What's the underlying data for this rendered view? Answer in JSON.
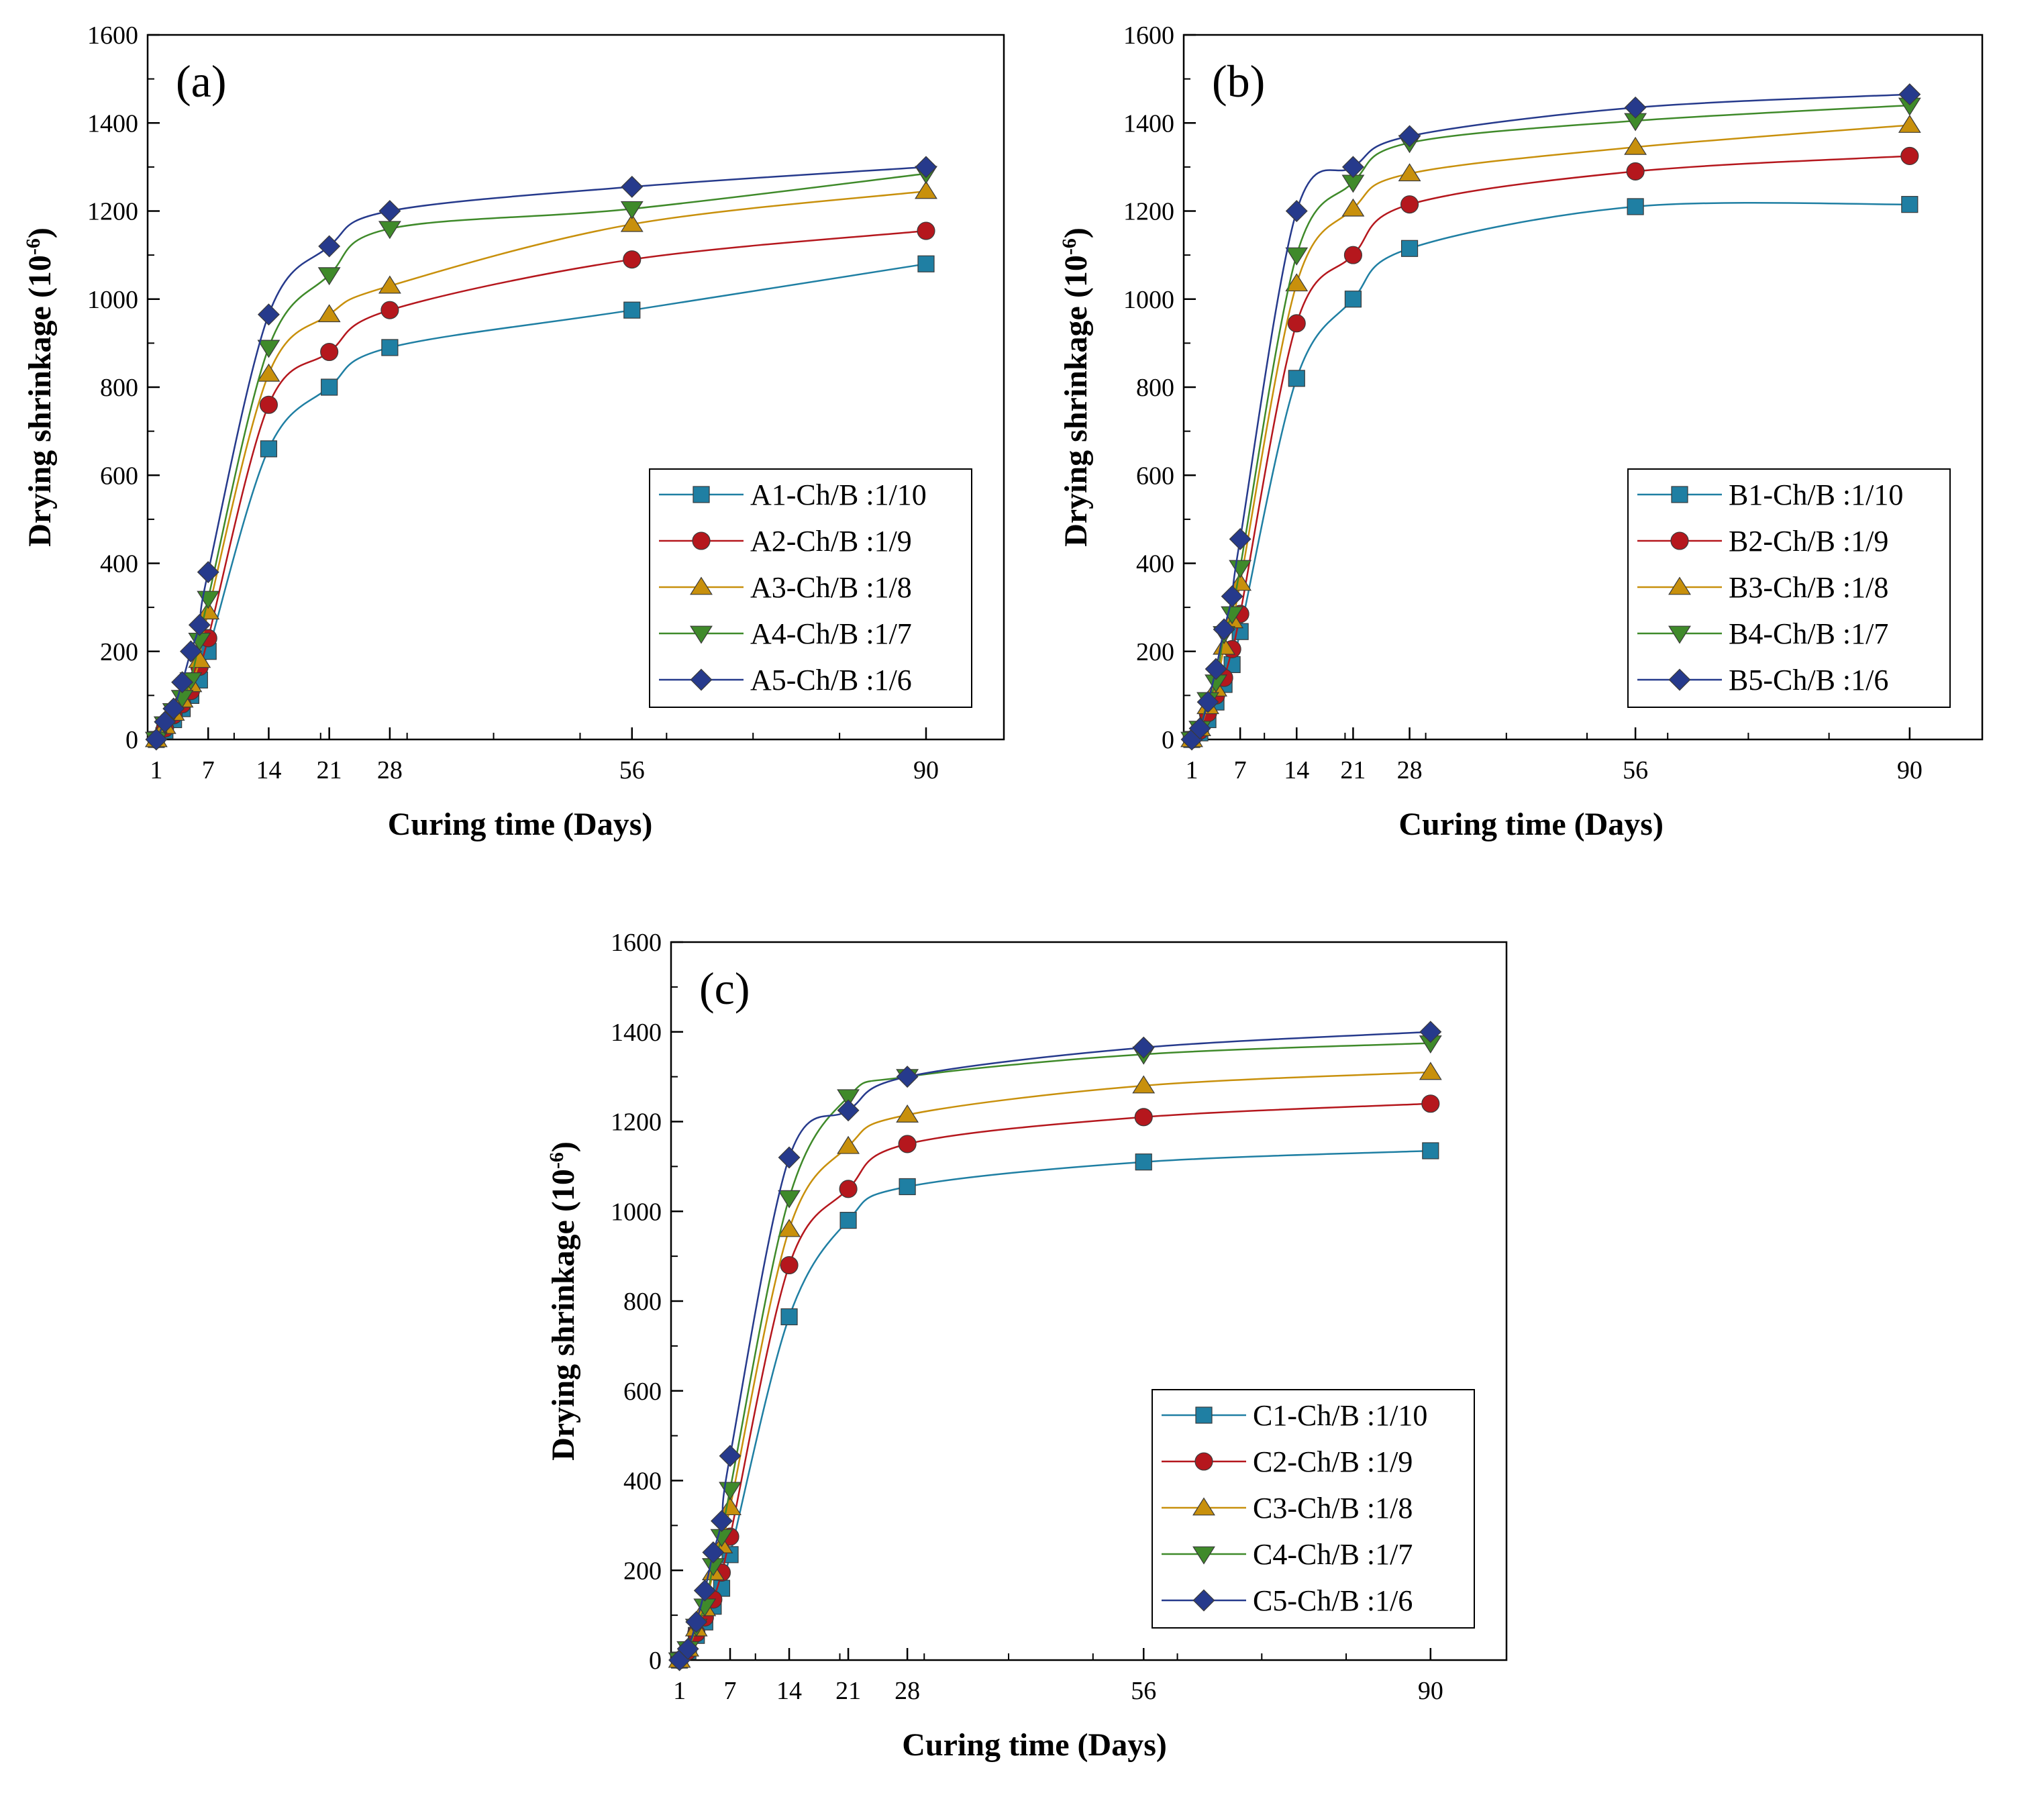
{
  "figure": {
    "panel_labels": [
      "(a)",
      "(b)",
      "(c)"
    ],
    "colors": {
      "s1": "#1f7fa3",
      "s2": "#b5171d",
      "s3": "#c8900c",
      "s4": "#3f8a2a",
      "s5": "#263a8c",
      "axis": "#000000"
    },
    "markers": [
      "square",
      "circle",
      "triangle-up",
      "triangle-down",
      "diamond"
    ]
  },
  "chart_data": [
    {
      "type": "line",
      "panel": "(a)",
      "xlabel": "Curing time (Days)",
      "ylabel": "Drying shrinkage (10",
      "ylabel_sup": "-6",
      "ylabel_close": ")",
      "x_ticks": [
        1,
        7,
        14,
        21,
        28,
        56,
        90
      ],
      "xlim": [
        0,
        99
      ],
      "ylim": [
        0,
        1600
      ],
      "y_ticks": [
        0,
        200,
        400,
        600,
        800,
        1000,
        1200,
        1400,
        1600
      ],
      "legend_position": "lower-right",
      "x": [
        1,
        2,
        3,
        4,
        5,
        6,
        7,
        14,
        21,
        28,
        56,
        90
      ],
      "series": [
        {
          "name": "A1-Ch/B :1/10",
          "values": [
            0,
            20,
            45,
            70,
            100,
            135,
            200,
            660,
            800,
            890,
            975,
            1080
          ]
        },
        {
          "name": "A2-Ch/B :1/9",
          "values": [
            0,
            25,
            55,
            80,
            110,
            165,
            230,
            760,
            880,
            975,
            1090,
            1155
          ]
        },
        {
          "name": "A3-Ch/B :1/8",
          "values": [
            0,
            30,
            60,
            90,
            125,
            180,
            290,
            830,
            965,
            1030,
            1170,
            1245
          ]
        },
        {
          "name": "A4-Ch/B :1/7",
          "values": [
            0,
            35,
            65,
            95,
            135,
            225,
            320,
            890,
            1055,
            1160,
            1205,
            1285
          ]
        },
        {
          "name": "A5-Ch/B :1/6",
          "values": [
            0,
            40,
            70,
            130,
            200,
            260,
            380,
            965,
            1120,
            1200,
            1255,
            1300
          ]
        }
      ]
    },
    {
      "type": "line",
      "panel": "(b)",
      "xlabel": "Curing time (Days)",
      "ylabel": "Drying shrinkage (10",
      "ylabel_sup": "-6",
      "ylabel_close": ")",
      "x_ticks": [
        1,
        7,
        14,
        21,
        28,
        56,
        90
      ],
      "xlim": [
        0,
        99
      ],
      "ylim": [
        0,
        1600
      ],
      "y_ticks": [
        0,
        200,
        400,
        600,
        800,
        1000,
        1200,
        1400,
        1600
      ],
      "legend_position": "lower-right",
      "x": [
        1,
        2,
        3,
        4,
        5,
        6,
        7,
        14,
        21,
        28,
        56,
        90
      ],
      "series": [
        {
          "name": "B1-Ch/B :1/10",
          "values": [
            0,
            15,
            45,
            85,
            125,
            170,
            245,
            820,
            1000,
            1115,
            1210,
            1215
          ]
        },
        {
          "name": "B2-Ch/B :1/9",
          "values": [
            0,
            20,
            60,
            100,
            140,
            205,
            285,
            945,
            1100,
            1215,
            1290,
            1325
          ]
        },
        {
          "name": "B3-Ch/B :1/8",
          "values": [
            0,
            25,
            75,
            115,
            210,
            270,
            355,
            1035,
            1205,
            1285,
            1345,
            1395
          ]
        },
        {
          "name": "B4-Ch/B :1/7",
          "values": [
            0,
            25,
            90,
            130,
            240,
            285,
            390,
            1100,
            1265,
            1355,
            1405,
            1440
          ]
        },
        {
          "name": "B5-Ch/B :1/6",
          "values": [
            0,
            25,
            85,
            160,
            250,
            325,
            455,
            1200,
            1300,
            1370,
            1435,
            1465
          ]
        }
      ]
    },
    {
      "type": "line",
      "panel": "(c)",
      "xlabel": "Curing time (Days)",
      "ylabel": "Drying shrinkage (10",
      "ylabel_sup": "-6",
      "ylabel_close": ")",
      "x_ticks": [
        1,
        7,
        14,
        21,
        28,
        56,
        90
      ],
      "xlim": [
        0,
        99
      ],
      "ylim": [
        0,
        1600
      ],
      "y_ticks": [
        0,
        200,
        400,
        600,
        800,
        1000,
        1200,
        1400,
        1600
      ],
      "legend_position": "lower-right",
      "x": [
        1,
        2,
        3,
        4,
        5,
        6,
        7,
        14,
        21,
        28,
        56,
        90
      ],
      "series": [
        {
          "name": "C1-Ch/B :1/10",
          "values": [
            0,
            20,
            55,
            85,
            120,
            160,
            235,
            765,
            980,
            1055,
            1110,
            1135
          ]
        },
        {
          "name": "C2-Ch/B :1/9",
          "values": [
            0,
            20,
            60,
            95,
            135,
            195,
            275,
            880,
            1050,
            1150,
            1210,
            1240
          ]
        },
        {
          "name": "C3-Ch/B :1/8",
          "values": [
            0,
            25,
            70,
            115,
            195,
            255,
            340,
            960,
            1145,
            1215,
            1280,
            1310
          ]
        },
        {
          "name": "C4-Ch/B :1/7",
          "values": [
            0,
            25,
            75,
            120,
            210,
            275,
            380,
            1030,
            1255,
            1300,
            1350,
            1375
          ]
        },
        {
          "name": "C5-Ch/B :1/6",
          "values": [
            0,
            25,
            85,
            155,
            240,
            310,
            455,
            1120,
            1225,
            1300,
            1365,
            1400
          ]
        }
      ]
    }
  ]
}
